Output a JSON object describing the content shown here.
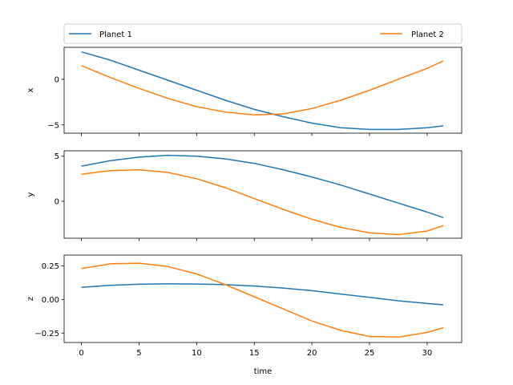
{
  "chart_data": {
    "type": "line",
    "legend": {
      "placement": "top",
      "entries": [
        "Planet 1",
        "Planet 2"
      ]
    },
    "xlabel": "time",
    "xlim": [
      -1.5,
      33.0
    ],
    "xticks": [
      0,
      5,
      10,
      15,
      20,
      25,
      30
    ],
    "x": [
      0,
      2.5,
      5,
      7.5,
      10,
      12.5,
      15,
      17.5,
      20,
      22.5,
      25,
      27.5,
      30,
      31.4
    ],
    "colors": {
      "Planet 1": "#1f77b4",
      "Planet 2": "#ff7f0e"
    },
    "panels": [
      {
        "ylabel": "x",
        "ylim": [
          -5.9,
          3.5
        ],
        "yticks": [
          0,
          -5
        ],
        "ytick_labels": [
          "0",
          "−5"
        ],
        "series": [
          {
            "name": "Planet 1",
            "values": [
              3.0,
              2.1,
              1.0,
              -0.1,
              -1.2,
              -2.3,
              -3.3,
              -4.1,
              -4.8,
              -5.3,
              -5.5,
              -5.5,
              -5.3,
              -5.1
            ]
          },
          {
            "name": "Planet 2",
            "values": [
              1.5,
              0.2,
              -1.0,
              -2.1,
              -3.0,
              -3.6,
              -3.9,
              -3.8,
              -3.2,
              -2.3,
              -1.2,
              0.0,
              1.2,
              2.0
            ]
          }
        ]
      },
      {
        "ylabel": "y",
        "ylim": [
          -4.1,
          5.6
        ],
        "yticks": [
          5,
          0
        ],
        "ytick_labels": [
          "5",
          "0"
        ],
        "series": [
          {
            "name": "Planet 1",
            "values": [
              3.9,
              4.5,
              4.9,
              5.1,
              5.0,
              4.7,
              4.2,
              3.5,
              2.7,
              1.8,
              0.8,
              -0.2,
              -1.2,
              -1.8
            ]
          },
          {
            "name": "Planet 2",
            "values": [
              3.0,
              3.4,
              3.5,
              3.2,
              2.5,
              1.5,
              0.3,
              -0.9,
              -2.0,
              -2.9,
              -3.5,
              -3.7,
              -3.3,
              -2.7
            ]
          }
        ]
      },
      {
        "ylabel": "z",
        "ylim": [
          -0.32,
          0.33
        ],
        "yticks": [
          0.25,
          0.0,
          -0.25
        ],
        "ytick_labels": [
          "0.25",
          "0.00",
          "−0.25"
        ],
        "series": [
          {
            "name": "Planet 1",
            "values": [
              0.09,
              0.105,
              0.113,
              0.116,
              0.115,
              0.11,
              0.1,
              0.085,
              0.065,
              0.04,
              0.015,
              -0.01,
              -0.03,
              -0.04
            ]
          },
          {
            "name": "Planet 2",
            "values": [
              0.23,
              0.265,
              0.27,
              0.245,
              0.19,
              0.11,
              0.02,
              -0.07,
              -0.16,
              -0.23,
              -0.275,
              -0.28,
              -0.245,
              -0.21
            ]
          }
        ]
      }
    ]
  }
}
